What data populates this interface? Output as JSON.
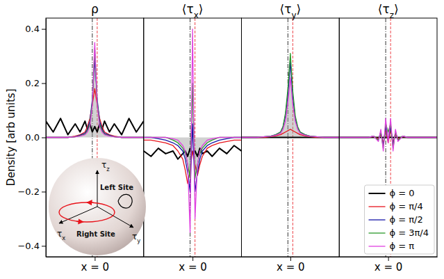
{
  "chart_data": [
    {
      "type": "line",
      "title": "ρ",
      "ylabel": "Density [arb units]",
      "x": [
        -20,
        -17,
        -14,
        -11,
        -8,
        -6,
        -4,
        -3,
        -2,
        -1,
        0,
        1,
        2,
        3,
        4,
        6,
        8,
        11,
        14,
        17,
        20
      ],
      "xlim": [
        -20,
        20
      ],
      "ylim": [
        -0.44,
        0.44
      ],
      "xticks": [
        {
          "value": 0,
          "label": "x = 0"
        }
      ],
      "yticks": [
        {
          "value": -0.4,
          "label": "−0.4"
        },
        {
          "value": -0.2,
          "label": "−0.2"
        },
        {
          "value": 0,
          "label": "0.0"
        },
        0.2,
        0.4
      ],
      "vlines": [
        -1,
        1
      ],
      "annotations": [
        "τz",
        "τx",
        "τy",
        "Left Site",
        "Right Site"
      ],
      "series": [
        {
          "color": "#000000",
          "values": [
            0.06,
            0.02,
            0.07,
            0.01,
            0.05,
            0.02,
            0.06,
            0.03,
            0.05,
            0.02,
            0.04,
            0.02,
            0.05,
            0.03,
            0.06,
            0.02,
            0.05,
            0.01,
            0.07,
            0.02,
            0.06
          ]
        },
        {
          "color": "#e8141c",
          "values": [
            0,
            0,
            0,
            0,
            0.005,
            0.01,
            0.02,
            0.04,
            0.07,
            0.12,
            0.18,
            0.12,
            0.07,
            0.04,
            0.02,
            0.01,
            0.005,
            0,
            0,
            0,
            0
          ]
        },
        {
          "color": "#1515a8",
          "values": [
            0,
            0,
            0,
            0,
            0.003,
            0.008,
            0.015,
            0.03,
            0.06,
            0.14,
            0.29,
            0.14,
            0.06,
            0.03,
            0.015,
            0.008,
            0.003,
            0,
            0,
            0,
            0
          ]
        },
        {
          "color": "#2a9a2a",
          "type": "area",
          "values": [
            0,
            0,
            0,
            0,
            0.002,
            0.006,
            0.012,
            0.025,
            0.05,
            0.13,
            0.33,
            0.13,
            0.05,
            0.025,
            0.012,
            0.006,
            0.002,
            0,
            0,
            0,
            0
          ]
        },
        {
          "color": "#e040e0",
          "values": [
            0,
            0,
            0,
            0,
            0.002,
            0.005,
            0.01,
            0.02,
            0.04,
            0.12,
            0.35,
            0.12,
            0.04,
            0.02,
            0.01,
            0.005,
            0.002,
            0,
            0,
            0,
            0
          ]
        }
      ]
    },
    {
      "type": "line",
      "title": "⟨τx⟩",
      "tick_labels": "x",
      "x": [
        -20,
        -17,
        -14,
        -11,
        -8,
        -6,
        -4,
        -3,
        -2,
        -1,
        0,
        1,
        2,
        3,
        4,
        6,
        8,
        11,
        14,
        17,
        20
      ],
      "xlim": [
        -20,
        20
      ],
      "ylim": [
        -0.44,
        0.44
      ],
      "xticks": [
        {
          "value": 0,
          "label": "x = 0"
        }
      ],
      "vlines": [
        -1,
        1
      ],
      "series": [
        {
          "color": "#000000",
          "values": [
            -0.05,
            -0.07,
            -0.04,
            -0.06,
            -0.05,
            -0.08,
            -0.06,
            -0.05,
            -0.07,
            -0.04,
            -0.06,
            -0.05,
            -0.07,
            -0.04,
            -0.06,
            -0.05,
            -0.07,
            -0.04,
            -0.06,
            -0.03,
            -0.05
          ]
        },
        {
          "color": "#e8141c",
          "values": [
            -0.01,
            -0.01,
            -0.015,
            -0.02,
            -0.03,
            -0.05,
            -0.08,
            -0.12,
            -0.17,
            -0.12,
            -0.05,
            -0.1,
            -0.14,
            -0.1,
            -0.07,
            -0.04,
            -0.03,
            -0.02,
            -0.015,
            -0.01,
            -0.01
          ]
        },
        {
          "color": "#1515a8",
          "values": [
            0,
            0,
            -0.005,
            -0.01,
            -0.02,
            -0.03,
            -0.05,
            -0.08,
            -0.13,
            -0.2,
            0.05,
            -0.2,
            -0.13,
            -0.08,
            -0.05,
            -0.03,
            -0.02,
            -0.01,
            -0.005,
            0,
            0
          ]
        },
        {
          "color": "#2a9a2a",
          "type": "area",
          "values": [
            0,
            0,
            0,
            0,
            -0.01,
            -0.02,
            -0.04,
            -0.06,
            -0.1,
            -0.15,
            0.2,
            -0.15,
            -0.1,
            -0.06,
            -0.04,
            -0.02,
            -0.01,
            0,
            0,
            0,
            0
          ]
        },
        {
          "color": "#e040e0",
          "values": [
            0,
            0,
            0,
            0,
            -0.005,
            -0.01,
            -0.03,
            -0.05,
            -0.1,
            -0.35,
            0.4,
            -0.3,
            -0.1,
            -0.05,
            -0.03,
            -0.01,
            -0.005,
            0,
            0,
            0,
            0
          ]
        }
      ]
    },
    {
      "type": "line",
      "title": "⟨τy⟩",
      "tick_labels": "x",
      "x": [
        -20,
        -17,
        -14,
        -11,
        -8,
        -6,
        -4,
        -3,
        -2,
        -1,
        0,
        1,
        2,
        3,
        4,
        6,
        8,
        11,
        14,
        17,
        20
      ],
      "xlim": [
        -20,
        20
      ],
      "ylim": [
        -0.44,
        0.44
      ],
      "xticks": [
        {
          "value": 0,
          "label": "x = 0"
        }
      ],
      "vlines": [
        -1,
        1
      ],
      "series": [
        {
          "color": "#000000",
          "values": [
            0,
            0,
            0,
            0,
            0,
            0,
            0,
            0,
            0,
            0,
            0,
            0,
            0,
            0,
            0,
            0,
            0,
            0,
            0,
            0,
            0
          ]
        },
        {
          "color": "#e8141c",
          "values": [
            0,
            0,
            0,
            0,
            0.003,
            0.006,
            0.01,
            0.015,
            0.02,
            0.025,
            0.03,
            0.025,
            0.02,
            0.015,
            0.01,
            0.006,
            0.003,
            0,
            0,
            0,
            0
          ]
        },
        {
          "color": "#1515a8",
          "values": [
            0,
            0,
            0,
            0.002,
            0.005,
            0.01,
            0.02,
            0.04,
            0.08,
            0.16,
            0.28,
            0.15,
            0.07,
            0.035,
            0.02,
            0.01,
            0.005,
            0.002,
            0,
            0,
            0
          ]
        },
        {
          "color": "#2a9a2a",
          "type": "area",
          "values": [
            0,
            0,
            0,
            0.002,
            0.005,
            0.01,
            0.02,
            0.04,
            0.09,
            0.18,
            0.31,
            0.17,
            0.08,
            0.04,
            0.02,
            0.01,
            0.005,
            0.002,
            0,
            0,
            0
          ]
        },
        {
          "color": "#e040e0",
          "values": [
            0,
            0,
            0,
            0.002,
            0.004,
            0.008,
            0.015,
            0.03,
            0.06,
            0.13,
            0.22,
            0.12,
            0.06,
            0.03,
            0.015,
            0.008,
            0.004,
            0.002,
            0,
            0,
            0
          ]
        }
      ]
    },
    {
      "type": "line",
      "title": "⟨τz⟩",
      "tick_labels": "x",
      "legend": "lower right",
      "x": [
        -20,
        -17,
        -14,
        -11,
        -8,
        -6,
        -4,
        -3,
        -2,
        -1,
        0,
        1,
        2,
        3,
        4,
        6,
        8,
        11,
        14,
        17,
        20
      ],
      "xlim": [
        -20,
        20
      ],
      "ylim": [
        -0.44,
        0.44
      ],
      "xticks": [
        {
          "value": 0,
          "label": "x = 0"
        }
      ],
      "vlines": [
        -1,
        1
      ],
      "series": [
        {
          "name": "ϕ = 0",
          "color": "#000000",
          "values": [
            0,
            0,
            0,
            0,
            0,
            0,
            0,
            0,
            0,
            0,
            0,
            0,
            0,
            0,
            0,
            0,
            0,
            0,
            0,
            0,
            0
          ]
        },
        {
          "name": "ϕ = π/4",
          "color": "#e8141c",
          "values": [
            0,
            0,
            0,
            0,
            0,
            0.003,
            -0.005,
            0.01,
            -0.02,
            0.03,
            -0.02,
            0.03,
            -0.02,
            0.01,
            -0.005,
            0.003,
            0,
            0,
            0,
            0,
            0
          ]
        },
        {
          "name": "ϕ = π/2",
          "color": "#1515a8",
          "values": [
            0,
            0,
            0,
            0,
            0,
            0.005,
            -0.01,
            0.02,
            -0.03,
            0.04,
            -0.01,
            0.04,
            -0.03,
            0.02,
            -0.01,
            0.005,
            0,
            0,
            0,
            0,
            0
          ]
        },
        {
          "name": "ϕ = 3π/4",
          "color": "#2a9a2a",
          "type": "area",
          "values": [
            0,
            0,
            0,
            0,
            0,
            0.005,
            -0.01,
            0.02,
            -0.04,
            0.05,
            0.02,
            0.05,
            -0.04,
            0.02,
            -0.01,
            0.005,
            0,
            0,
            0,
            0,
            0
          ]
        },
        {
          "name": "ϕ = π",
          "color": "#e040e0",
          "values": [
            0,
            0,
            0,
            0,
            0,
            0.005,
            -0.015,
            0.03,
            -0.05,
            0.07,
            -0.02,
            0.07,
            -0.05,
            0.03,
            -0.015,
            0.005,
            0,
            0,
            0,
            0,
            0
          ]
        }
      ]
    }
  ]
}
